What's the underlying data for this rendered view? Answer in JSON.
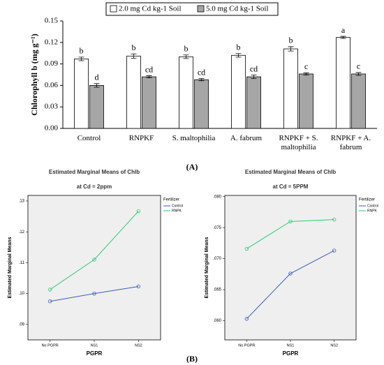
{
  "chart_data": [
    {
      "type": "bar",
      "panel": "(A)",
      "ylabel": "Chlorophyll b (mg g⁻¹)",
      "categories": [
        "Control",
        "RNPKF",
        "S. maltophilia",
        "A. fabrum",
        "RNPKF + S. maltophilia",
        "RNPKF + A. fabrum"
      ],
      "series": [
        {
          "name": "2.0 mg Cd kg-1 Soil",
          "color": "#ffffff",
          "values": [
            0.097,
            0.101,
            0.1,
            0.102,
            0.111,
            0.127
          ],
          "errors": [
            0.0025,
            0.003,
            0.0025,
            0.0025,
            0.003,
            0.0015
          ],
          "letters": [
            "b",
            "b",
            "b",
            "b",
            "b",
            "a"
          ]
        },
        {
          "name": "5.0 mg Cd kg-1 Soil",
          "color": "#a6a6a6",
          "values": [
            0.06,
            0.072,
            0.068,
            0.072,
            0.076,
            0.076
          ],
          "errors": [
            0.0025,
            0.0015,
            0.0015,
            0.0025,
            0.0015,
            0.002
          ],
          "letters": [
            "d",
            "cd",
            "cd",
            "cd",
            "c",
            "c"
          ]
        }
      ],
      "ylim": [
        0,
        0.15
      ],
      "yticks": [
        {
          "value": 0,
          "label": "0.00"
        },
        {
          "value": 0.03,
          "label": "0.03"
        },
        {
          "value": 0.06,
          "label": "0.06"
        },
        {
          "value": 0.09,
          "label": "0.09"
        },
        {
          "value": 0.12,
          "label": "0.12"
        },
        {
          "value": 0.15,
          "label": "0.15"
        }
      ]
    },
    {
      "type": "line",
      "panel": "(B)",
      "title": "Estimated Marginal Means of Chlb",
      "subtitle": "at Cd = 2ppm",
      "xlabel": "PGPR",
      "ylabel": "Estimated Marginal Means",
      "legend_title": "Fertilizer",
      "categories": [
        "No PGPR",
        "NS1",
        "NS2"
      ],
      "series": [
        {
          "name": "Control",
          "color": "#3b5bb5",
          "values": [
            0.0975,
            0.1,
            0.1023
          ]
        },
        {
          "name": "RNPK",
          "color": "#2ecc71",
          "values": [
            0.1013,
            0.111,
            0.1267
          ]
        }
      ],
      "ylim": [
        0.085,
        0.1318
      ],
      "yticks": [
        {
          "value": 0.09,
          "label": ".09"
        },
        {
          "value": 0.1,
          "label": ".10"
        },
        {
          "value": 0.11,
          "label": ".11"
        },
        {
          "value": 0.12,
          "label": ".12"
        },
        {
          "value": 0.13,
          "label": ".13"
        }
      ]
    },
    {
      "type": "line",
      "title": "Estimated Marginal Means of Chlb",
      "subtitle": "at Cd = 5PPM",
      "xlabel": "PGPR",
      "ylabel": "Estimated Marginal Means",
      "legend_title": "Fertilizer",
      "categories": [
        "No PGPR",
        "NS1",
        "NS2"
      ],
      "series": [
        {
          "name": "Control",
          "color": "#3b5bb5",
          "values": [
            0.0603,
            0.0676,
            0.0713
          ]
        },
        {
          "name": "RNPK",
          "color": "#2ecc71",
          "values": [
            0.0716,
            0.076,
            0.0763
          ]
        }
      ],
      "ylim": [
        0.0569,
        0.0802
      ],
      "yticks": [
        {
          "value": 0.06,
          "label": ".060"
        },
        {
          "value": 0.065,
          "label": ".065"
        },
        {
          "value": 0.07,
          "label": ".070"
        },
        {
          "value": 0.075,
          "label": ".075"
        },
        {
          "value": 0.08,
          "label": ".080"
        }
      ]
    }
  ]
}
